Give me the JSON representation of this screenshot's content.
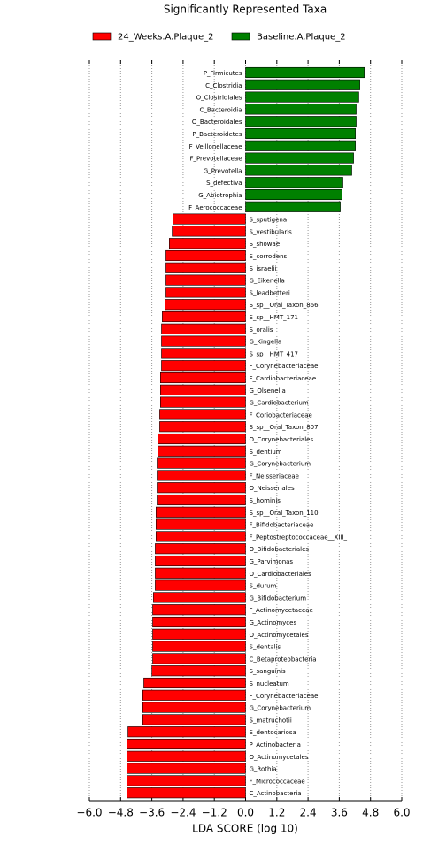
{
  "chart_data": {
    "type": "hbar",
    "title": "Significantly Represented Taxa",
    "x_label": "LDA SCORE (log 10)",
    "xlim": [
      -6,
      6
    ],
    "xticks": [
      {
        "value": -6,
        "label": "−6.0"
      },
      {
        "value": -4.8,
        "label": "−4.8"
      },
      {
        "value": -3.6,
        "label": "−3.6"
      },
      {
        "value": -2.4,
        "label": "−2.4"
      },
      {
        "value": -1.2,
        "label": "−1.2"
      },
      {
        "value": 0,
        "label": "0.0"
      },
      {
        "value": 1.2,
        "label": "1.2"
      },
      {
        "value": 2.4,
        "label": "2.4"
      },
      {
        "value": 3.6,
        "label": "3.6"
      },
      {
        "value": 4.8,
        "label": "4.8"
      },
      {
        "value": 6,
        "label": "6.0"
      }
    ],
    "grid": true,
    "series": [
      {
        "name": "Baseline.A.Plaque_2",
        "color": "#008000",
        "categories": [
          "P_Firmicutes",
          "C_Clostridia",
          "O_Clostridiales",
          "C_Bacteroidia",
          "O_Bacteroidales",
          "P_Bacteroidetes",
          "F_Veillonellaceae",
          "F_Prevotellaceae",
          "G_Prevotella",
          "S_defectiva",
          "G_Abiotrophia",
          "F_Aerococcaceae"
        ],
        "values": [
          4.56,
          4.39,
          4.35,
          4.25,
          4.25,
          4.22,
          4.22,
          4.15,
          4.08,
          3.74,
          3.71,
          3.64
        ]
      },
      {
        "name": "24_Weeks.A.Plaque_2",
        "color": "#ff0000",
        "categories": [
          "S_sputigena",
          "S_vestibularis",
          "S_showae",
          "S_corrodens",
          "S_israelii",
          "G_Eikenella",
          "S_leadbetteri",
          "S_sp__Oral_Taxon_866",
          "S_sp__HMT_171",
          "S_oralis",
          "G_Kingella",
          "S_sp__HMT_417",
          "F_Corynebacteriaceae",
          "F_Cardiobacteriaceae",
          "G_Olsenella",
          "G_Cardiobacterium",
          "F_Coriobacteriaceae",
          "S_sp__Oral_Taxon_807",
          "O_Corynebacteriales",
          "S_dentium",
          "G_Corynebacterium",
          "F_Neisseriaceae",
          "O_Neisseriales",
          "S_hominis",
          "S_sp__Oral_Taxon_110",
          "F_Bifidobacteriaceae",
          "F_Peptostreptococcaceae__XIII_",
          "O_Bifidobacteriales",
          "G_Parvimonas",
          "O_Cardiobacteriales",
          "S_durum",
          "G_Bifidobacterium",
          "F_Actinomycetaceae",
          "G_Actinomyces",
          "O_Actinomycetales",
          "S_dentalis",
          "C_Betaproteobacteria",
          "S_sanguinis",
          "S_nucleatum",
          "F_Corynebacteriaceae",
          "G_Corynebacterium",
          "S_matruchotii",
          "S_dentocariosa",
          "P_Actinobacteria",
          "O_Actinomycetales",
          "G_Rothia",
          "F_Micrococcaceae",
          "C_Actinobacteria"
        ],
        "values": [
          -2.79,
          -2.82,
          -2.93,
          -3.06,
          -3.06,
          -3.06,
          -3.06,
          -3.1,
          -3.2,
          -3.23,
          -3.23,
          -3.23,
          -3.23,
          -3.27,
          -3.27,
          -3.27,
          -3.3,
          -3.3,
          -3.37,
          -3.37,
          -3.4,
          -3.4,
          -3.4,
          -3.4,
          -3.44,
          -3.44,
          -3.44,
          -3.47,
          -3.47,
          -3.47,
          -3.47,
          -3.54,
          -3.57,
          -3.57,
          -3.57,
          -3.57,
          -3.57,
          -3.6,
          -3.91,
          -3.95,
          -3.95,
          -3.95,
          -4.52,
          -4.56,
          -4.56,
          -4.56,
          -4.56,
          -4.56
        ]
      }
    ]
  }
}
